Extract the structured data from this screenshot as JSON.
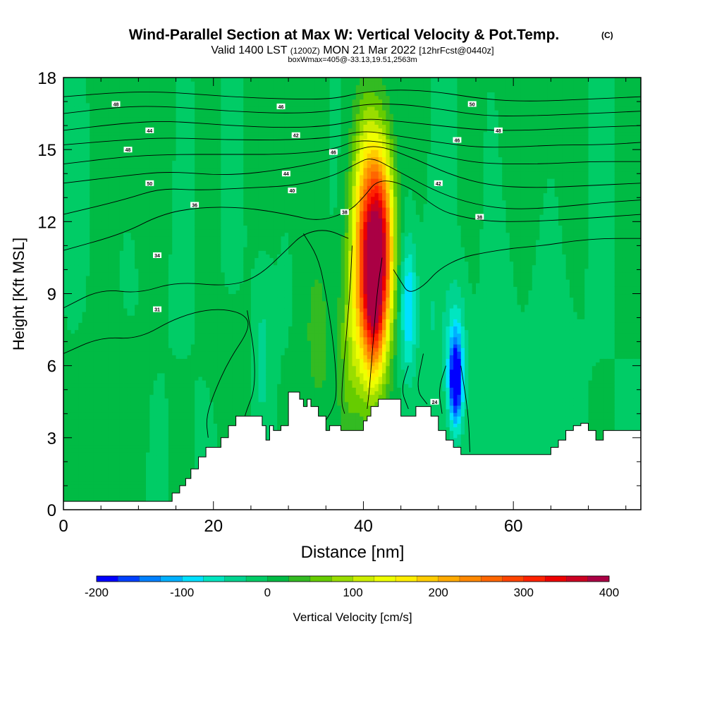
{
  "chart_data": {
    "type": "heatmap",
    "title": "Wind-Parallel Section at Max W: Vertical Velocity & Pot.Temp.",
    "title_mark": "(C)",
    "subtitle_main": "Valid 1400 LST",
    "subtitle_utc": "(1200Z)",
    "subtitle_date": "MON 21 Mar 2022",
    "subtitle_fcst": "[12hrFcst@0440z]",
    "subtitle2": "boxWmax=405@-33.13,19.51,2563m",
    "xlabel": "Distance [nm]",
    "ylabel": "Height [Kft MSL]",
    "xlim": [
      0,
      77
    ],
    "ylim": [
      0,
      18
    ],
    "xticks": [
      0,
      20,
      40,
      60
    ],
    "yticks": [
      0,
      3,
      6,
      9,
      12,
      15,
      18
    ],
    "colorbar": {
      "label": "Vertical Velocity [cm/s]",
      "ticks": [
        -200,
        -100,
        0,
        100,
        200,
        300,
        400
      ],
      "levels": [
        -200,
        -175,
        -150,
        -125,
        -100,
        -75,
        -50,
        -25,
        0,
        25,
        50,
        75,
        100,
        125,
        150,
        175,
        200,
        225,
        250,
        275,
        300,
        325,
        350,
        375,
        400
      ],
      "colors": [
        "#0000ff",
        "#0040ff",
        "#0080ff",
        "#00b0ff",
        "#00e0ff",
        "#00e6c0",
        "#00d490",
        "#00cc66",
        "#00bb44",
        "#33bb22",
        "#66cc00",
        "#99dd00",
        "#ccee00",
        "#eeff00",
        "#ffee00",
        "#ffcc00",
        "#ffaa00",
        "#ff8800",
        "#ff6600",
        "#ff4400",
        "#ff2200",
        "#ee0000",
        "#cc0022",
        "#aa0044"
      ]
    },
    "terrain_kft": [
      [
        0,
        0.35
      ],
      [
        13.5,
        0.35
      ],
      [
        14.5,
        0.7
      ],
      [
        15.5,
        1.0
      ],
      [
        16.3,
        1.3
      ],
      [
        17,
        1.7
      ],
      [
        18,
        2.2
      ],
      [
        19,
        2.6
      ],
      [
        20,
        2.6
      ],
      [
        21,
        3.0
      ],
      [
        22,
        3.5
      ],
      [
        23,
        3.9
      ],
      [
        26,
        3.9
      ],
      [
        26.5,
        3.5
      ],
      [
        27,
        2.9
      ],
      [
        27.5,
        3.5
      ],
      [
        28,
        3.3
      ],
      [
        29,
        3.5
      ],
      [
        30,
        4.9
      ],
      [
        31,
        4.9
      ],
      [
        31.5,
        4.6
      ],
      [
        32,
        4.3
      ],
      [
        32.5,
        4.6
      ],
      [
        33,
        4.3
      ],
      [
        34,
        3.9
      ],
      [
        35,
        3.3
      ],
      [
        35.5,
        3.5
      ],
      [
        37,
        3.3
      ],
      [
        39,
        3.3
      ],
      [
        40,
        3.7
      ],
      [
        40.5,
        3.9
      ],
      [
        41,
        4.3
      ],
      [
        42,
        4.6
      ],
      [
        44,
        4.6
      ],
      [
        45,
        3.9
      ],
      [
        46,
        3.9
      ],
      [
        47,
        4.3
      ],
      [
        48,
        4.3
      ],
      [
        49,
        3.9
      ],
      [
        50,
        3.3
      ],
      [
        51,
        2.9
      ],
      [
        52,
        2.6
      ],
      [
        53,
        2.3
      ],
      [
        60,
        2.3
      ],
      [
        64,
        2.3
      ],
      [
        65,
        2.6
      ],
      [
        66,
        2.9
      ],
      [
        67,
        3.3
      ],
      [
        68,
        3.5
      ],
      [
        69,
        3.6
      ],
      [
        70,
        3.3
      ],
      [
        71,
        2.9
      ],
      [
        72,
        3.3
      ],
      [
        77,
        3.3
      ]
    ],
    "w_cells": [
      {
        "x": 40.5,
        "z": 10.5,
        "sx": 1.4,
        "sz": 3.5,
        "w": 300
      },
      {
        "x": 42.5,
        "z": 11.0,
        "sx": 1.2,
        "sz": 2.8,
        "w": 280
      },
      {
        "x": 41.5,
        "z": 8.0,
        "sx": 0.9,
        "sz": 1.8,
        "w": 110
      },
      {
        "x": 38.0,
        "z": 6.5,
        "sx": 1.0,
        "sz": 3.0,
        "w": 50
      },
      {
        "x": 34.0,
        "z": 7.0,
        "sx": 1.4,
        "sz": 2.5,
        "w": 35
      },
      {
        "x": 46.0,
        "z": 8.5,
        "sx": 0.8,
        "sz": 2.0,
        "w": -105
      },
      {
        "x": 52.3,
        "z": 5.3,
        "sx": 0.6,
        "sz": 1.2,
        "w": -185
      },
      {
        "x": 52.3,
        "z": 6.5,
        "sx": 1.0,
        "sz": 2.0,
        "w": -80
      },
      {
        "x": 26.5,
        "z": 6.5,
        "sx": 0.9,
        "sz": 2.5,
        "w": -35
      },
      {
        "x": 49.0,
        "z": 8.0,
        "sx": 1.0,
        "sz": 2.5,
        "w": -25
      },
      {
        "x": 58.0,
        "z": 6.0,
        "sx": 1.5,
        "sz": 3.0,
        "w": -22
      },
      {
        "x": 6.0,
        "z": 3.0,
        "sx": 3.0,
        "sz": 3.0,
        "w": 15
      },
      {
        "x": 10.0,
        "z": 14.5,
        "sx": 3.0,
        "sz": 2.5,
        "w": 12
      },
      {
        "x": 62.0,
        "z": 15.0,
        "sx": 3.0,
        "sz": 3.0,
        "w": 10
      },
      {
        "x": 30.0,
        "z": 14.0,
        "sx": 3.0,
        "sz": 3.0,
        "w": 8
      },
      {
        "x": 23.0,
        "z": 6.0,
        "sx": 2.0,
        "sz": 2.0,
        "w": 12
      },
      {
        "x": 65.0,
        "z": 6.0,
        "sx": 2.0,
        "sz": 3.0,
        "w": -15
      }
    ],
    "isentropes": [
      {
        "label": "31",
        "pts": [
          [
            0,
            6.5
          ],
          [
            5,
            7.2
          ],
          [
            10,
            7.1
          ],
          [
            15,
            8.0
          ],
          [
            20,
            8.4
          ],
          [
            24,
            8.2
          ],
          [
            25,
            7.6
          ],
          [
            22,
            6.2
          ],
          [
            20,
            4.8
          ],
          [
            19,
            3.8
          ],
          [
            19.3,
            3.0
          ]
        ],
        "label_at": [
          12.5,
          8.35
        ]
      },
      {
        "label": "",
        "pts": [
          [
            24.5,
            8.3
          ],
          [
            25.5,
            6.5
          ],
          [
            25.5,
            5.0
          ],
          [
            24.5,
            4.2
          ],
          [
            24.2,
            3.9
          ]
        ],
        "label_at": null
      },
      {
        "label": "",
        "pts": [
          [
            32,
            11.5
          ],
          [
            34,
            10.5
          ],
          [
            35,
            9.0
          ],
          [
            36,
            7.0
          ],
          [
            36.5,
            5.0
          ],
          [
            36,
            4.2
          ],
          [
            34.5,
            3.5
          ]
        ],
        "label_at": null
      },
      {
        "label": "",
        "pts": [
          [
            38.5,
            11.0
          ],
          [
            38.2,
            9.0
          ],
          [
            37.5,
            6.5
          ],
          [
            37,
            4.5
          ],
          [
            37.5,
            4.0
          ]
        ],
        "label_at": null
      },
      {
        "label": "",
        "pts": [
          [
            42.5,
            10.5
          ],
          [
            41.8,
            9.0
          ],
          [
            41.3,
            7.0
          ],
          [
            40.8,
            5.0
          ],
          [
            40.5,
            4.2
          ]
        ],
        "label_at": null
      },
      {
        "label": "34",
        "pts": [
          [
            0,
            8.4
          ],
          [
            5,
            9.2
          ],
          [
            10,
            9.0
          ],
          [
            15,
            9.5
          ],
          [
            22,
            9.3
          ],
          [
            26,
            9.7
          ],
          [
            30,
            10.9
          ],
          [
            32,
            11.5
          ],
          [
            35,
            11.7
          ],
          [
            38,
            11.3
          ]
        ],
        "label_at": [
          12.5,
          10.6
        ]
      },
      {
        "label": "",
        "pts": [
          [
            44,
            10.0
          ],
          [
            45,
            9.5
          ],
          [
            46,
            9.0
          ],
          [
            48,
            9.3
          ],
          [
            50,
            10.0
          ],
          [
            53,
            10.5
          ],
          [
            56,
            10.7
          ],
          [
            60,
            10.9
          ],
          [
            64,
            11.0
          ],
          [
            68,
            11.2
          ],
          [
            72,
            11.3
          ],
          [
            77,
            11.3
          ]
        ],
        "label_at": null
      },
      {
        "label": "",
        "pts": [
          [
            46,
            6.0
          ],
          [
            45,
            5.0
          ],
          [
            46,
            4.2
          ]
        ],
        "label_at": null
      },
      {
        "label": "",
        "pts": [
          [
            48,
            6.5
          ],
          [
            47,
            5.0
          ],
          [
            48.5,
            4.4
          ]
        ],
        "label_at": null
      },
      {
        "label": "",
        "pts": [
          [
            51,
            6.0
          ],
          [
            50,
            5.0
          ],
          [
            50.5,
            4.0
          ]
        ],
        "label_at": null
      },
      {
        "label": "",
        "pts": [
          [
            53,
            6.0
          ],
          [
            54,
            4.0
          ],
          [
            54.2,
            2.4
          ]
        ],
        "label_at": null
      },
      {
        "label": "36",
        "pts": [
          [
            0,
            10.8
          ],
          [
            8,
            11.5
          ],
          [
            13,
            12.3
          ],
          [
            18,
            12.6
          ],
          [
            24,
            12.6
          ],
          [
            30,
            12.3
          ],
          [
            34,
            12.0
          ],
          [
            38,
            12.4
          ],
          [
            40,
            13.0
          ],
          [
            42,
            13.8
          ],
          [
            46,
            13.5
          ],
          [
            50,
            12.5
          ],
          [
            53,
            12.2
          ],
          [
            57,
            12.0
          ],
          [
            62,
            12.0
          ],
          [
            68,
            12.1
          ],
          [
            77,
            12.3
          ]
        ],
        "label_at": [
          17.5,
          12.7
        ]
      },
      {
        "label": "38",
        "pts": [
          [
            0,
            12.3
          ],
          [
            8,
            12.9
          ],
          [
            13,
            13.4
          ],
          [
            18,
            13.3
          ],
          [
            24,
            13.4
          ],
          [
            31,
            13.5
          ],
          [
            36,
            13.9
          ],
          [
            39,
            14.4
          ],
          [
            41,
            14.7
          ],
          [
            44,
            14.2
          ],
          [
            50,
            13.2
          ],
          [
            55,
            12.7
          ],
          [
            60,
            12.5
          ],
          [
            66,
            12.6
          ],
          [
            72,
            12.8
          ],
          [
            77,
            12.9
          ]
        ],
        "label_at": [
          55.5,
          12.2
        ]
      },
      {
        "label": "40",
        "pts": [
          [
            0,
            13.6
          ],
          [
            8,
            13.9
          ],
          [
            14,
            14.1
          ],
          [
            22,
            13.9
          ],
          [
            30,
            14.2
          ],
          [
            36,
            14.6
          ],
          [
            39,
            15.0
          ],
          [
            42,
            15.2
          ],
          [
            47,
            14.6
          ],
          [
            52,
            13.9
          ],
          [
            57,
            13.5
          ],
          [
            63,
            13.4
          ],
          [
            70,
            13.5
          ],
          [
            77,
            13.6
          ]
        ],
        "label_at": [
          30.5,
          13.3
        ]
      },
      {
        "label": "42",
        "pts": [
          [
            0,
            14.4
          ],
          [
            8,
            14.7
          ],
          [
            14,
            14.8
          ],
          [
            22,
            14.8
          ],
          [
            30,
            14.8
          ],
          [
            36,
            15.0
          ],
          [
            39,
            15.4
          ],
          [
            43,
            15.3
          ],
          [
            48,
            14.9
          ],
          [
            54,
            14.5
          ],
          [
            58,
            14.4
          ],
          [
            64,
            14.4
          ],
          [
            70,
            14.5
          ],
          [
            77,
            14.5
          ]
        ],
        "label_at": [
          50,
          13.6
        ]
      },
      {
        "label": "44",
        "pts": [
          [
            0,
            15.2
          ],
          [
            8,
            15.4
          ],
          [
            14,
            15.5
          ],
          [
            22,
            15.4
          ],
          [
            30,
            15.4
          ],
          [
            36,
            15.5
          ],
          [
            40,
            15.8
          ],
          [
            44,
            15.6
          ],
          [
            50,
            15.3
          ],
          [
            55,
            15.1
          ],
          [
            60,
            15.1
          ],
          [
            66,
            15.2
          ],
          [
            72,
            15.2
          ],
          [
            77,
            15.3
          ]
        ],
        "label_at": [
          29.7,
          14.0
        ]
      },
      {
        "label": "46",
        "pts": [
          [
            0,
            15.8
          ],
          [
            8,
            16.1
          ],
          [
            14,
            16.2
          ],
          [
            22,
            16.0
          ],
          [
            30,
            15.9
          ],
          [
            36,
            16.0
          ],
          [
            40,
            16.3
          ],
          [
            44,
            16.2
          ],
          [
            50,
            16.0
          ],
          [
            56,
            15.8
          ],
          [
            62,
            15.8
          ],
          [
            68,
            15.9
          ],
          [
            77,
            16.0
          ]
        ],
        "label_at": [
          36,
          14.9
        ]
      },
      {
        "label": "48",
        "pts": [
          [
            0,
            16.5
          ],
          [
            8,
            16.8
          ],
          [
            14,
            16.8
          ],
          [
            22,
            16.6
          ],
          [
            30,
            16.5
          ],
          [
            36,
            16.6
          ],
          [
            40,
            16.9
          ],
          [
            45,
            16.9
          ],
          [
            50,
            16.7
          ],
          [
            56,
            16.4
          ],
          [
            62,
            16.4
          ],
          [
            70,
            16.5
          ],
          [
            77,
            16.6
          ]
        ],
        "label_at": [
          8.6,
          15.0
        ]
      },
      {
        "label": "50",
        "pts": [
          [
            0,
            17.2
          ],
          [
            8,
            17.4
          ],
          [
            14,
            17.4
          ],
          [
            22,
            17.2
          ],
          [
            30,
            17.1
          ],
          [
            36,
            17.1
          ],
          [
            40,
            17.4
          ],
          [
            45,
            17.5
          ],
          [
            50,
            17.4
          ],
          [
            56,
            17.1
          ],
          [
            62,
            17.0
          ],
          [
            70,
            17.1
          ],
          [
            77,
            17.2
          ]
        ],
        "label_at": [
          11.5,
          13.6
        ]
      }
    ],
    "contour_labels": [
      {
        "text": "48",
        "x": 7.0,
        "z": 16.9
      },
      {
        "text": "44",
        "x": 11.5,
        "z": 15.8
      },
      {
        "text": "46",
        "x": 29.0,
        "z": 16.8
      },
      {
        "text": "42",
        "x": 31.0,
        "z": 15.6
      },
      {
        "text": "50",
        "x": 54.5,
        "z": 16.9
      },
      {
        "text": "48",
        "x": 58.0,
        "z": 15.8
      },
      {
        "text": "46",
        "x": 52.5,
        "z": 15.4
      },
      {
        "text": "24",
        "x": 49.5,
        "z": 4.5
      },
      {
        "text": "38",
        "x": 37.5,
        "z": 12.4
      }
    ]
  }
}
